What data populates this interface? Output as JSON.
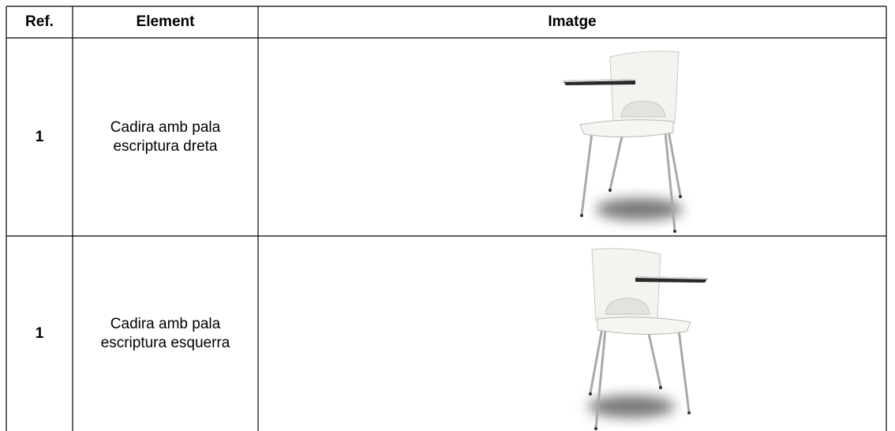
{
  "table": {
    "header": [
      "Ref.",
      "Element",
      "Imatge"
    ],
    "rows": [
      [
        "1",
        "Cadira amb pala escriptura dreta"
      ],
      [
        "1",
        "Cadira amb pala escriptura esquerra"
      ]
    ]
  }
}
